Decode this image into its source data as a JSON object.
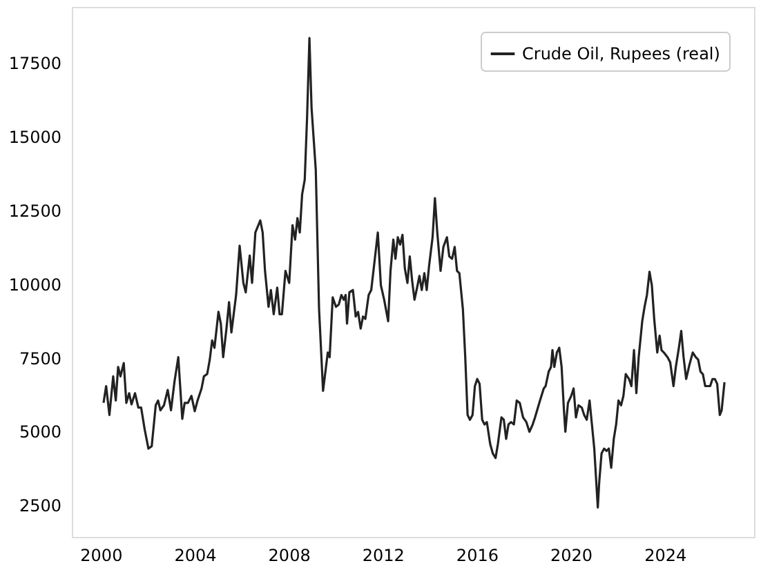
{
  "chart_data": {
    "type": "line",
    "x": [
      2000.12,
      2000.23,
      2000.37,
      2000.53,
      2000.64,
      2000.74,
      2000.84,
      2000.98,
      2001.09,
      2001.21,
      2001.31,
      2001.46,
      2001.6,
      2001.72,
      2001.87,
      2002.03,
      2002.17,
      2002.34,
      2002.44,
      2002.54,
      2002.69,
      2002.85,
      2002.99,
      2003.14,
      2003.3,
      2003.47,
      2003.57,
      2003.71,
      2003.86,
      2004.0,
      2004.12,
      2004.29,
      2004.39,
      2004.53,
      2004.64,
      2004.74,
      2004.84,
      2005.01,
      2005.11,
      2005.21,
      2005.35,
      2005.46,
      2005.56,
      2005.76,
      2005.91,
      2006.07,
      2006.17,
      2006.34,
      2006.44,
      2006.58,
      2006.79,
      2006.89,
      2006.99,
      2007.14,
      2007.24,
      2007.36,
      2007.51,
      2007.61,
      2007.71,
      2007.86,
      2008.02,
      2008.16,
      2008.27,
      2008.37,
      2008.47,
      2008.57,
      2008.68,
      2008.78,
      2008.88,
      2008.97,
      2009.15,
      2009.29,
      2009.46,
      2009.56,
      2009.66,
      2009.74,
      2009.87,
      2010.01,
      2010.13,
      2010.24,
      2010.34,
      2010.42,
      2010.48,
      2010.58,
      2010.73,
      2010.85,
      2010.95,
      2011.06,
      2011.16,
      2011.26,
      2011.4,
      2011.51,
      2011.65,
      2011.79,
      2011.92,
      2012.06,
      2012.23,
      2012.33,
      2012.45,
      2012.54,
      2012.64,
      2012.74,
      2012.84,
      2012.94,
      2013.05,
      2013.15,
      2013.25,
      2013.35,
      2013.46,
      2013.56,
      2013.66,
      2013.77,
      2013.87,
      2013.97,
      2014.12,
      2014.22,
      2014.32,
      2014.46,
      2014.58,
      2014.73,
      2014.83,
      2014.95,
      2015.06,
      2015.16,
      2015.26,
      2015.41,
      2015.51,
      2015.61,
      2015.71,
      2015.82,
      2015.92,
      2016.02,
      2016.12,
      2016.23,
      2016.33,
      2016.43,
      2016.57,
      2016.68,
      2016.8,
      2016.9,
      2017.05,
      2017.15,
      2017.25,
      2017.35,
      2017.46,
      2017.58,
      2017.7,
      2017.83,
      2017.97,
      2018.11,
      2018.24,
      2018.38,
      2018.48,
      2018.69,
      2018.85,
      2018.93,
      2019.06,
      2019.16,
      2019.22,
      2019.3,
      2019.41,
      2019.51,
      2019.61,
      2019.71,
      2019.77,
      2019.88,
      2020.02,
      2020.12,
      2020.22,
      2020.33,
      2020.47,
      2020.57,
      2020.68,
      2020.8,
      2020.9,
      2021.0,
      2021.15,
      2021.21,
      2021.31,
      2021.42,
      2021.52,
      2021.62,
      2021.72,
      2021.83,
      2021.93,
      2022.03,
      2022.14,
      2022.24,
      2022.34,
      2022.48,
      2022.58,
      2022.69,
      2022.79,
      2022.89,
      2023.04,
      2023.14,
      2023.24,
      2023.35,
      2023.45,
      2023.55,
      2023.68,
      2023.78,
      2023.86,
      2023.96,
      2024.12,
      2024.23,
      2024.37,
      2024.47,
      2024.6,
      2024.7,
      2024.8,
      2024.91,
      2025.05,
      2025.19,
      2025.32,
      2025.42,
      2025.52,
      2025.62,
      2025.72,
      2025.83,
      2025.93,
      2026.03,
      2026.13,
      2026.23,
      2026.34,
      2026.42,
      2026.54
    ],
    "series": [
      {
        "name": "Crude Oil, Rupees (real)",
        "color": "#222222",
        "values": [
          5970,
          6540,
          5560,
          6870,
          6050,
          7190,
          6870,
          7320,
          5970,
          6300,
          5920,
          6300,
          5810,
          5810,
          5070,
          4420,
          4500,
          5890,
          6050,
          5720,
          5890,
          6410,
          5720,
          6700,
          7520,
          5430,
          5970,
          5970,
          6210,
          5690,
          6050,
          6460,
          6870,
          6950,
          7440,
          8090,
          7840,
          9060,
          8660,
          7520,
          8490,
          9390,
          8360,
          9630,
          11300,
          10040,
          9720,
          10970,
          10040,
          11750,
          12160,
          11750,
          10450,
          9230,
          9800,
          8980,
          9880,
          8980,
          8980,
          10450,
          10040,
          12000,
          11510,
          12240,
          11750,
          13050,
          13540,
          15660,
          18350,
          15990,
          13870,
          9150,
          6380,
          7030,
          7680,
          7520,
          9550,
          9230,
          9310,
          9630,
          9470,
          9630,
          8660,
          9720,
          9800,
          8900,
          9060,
          8490,
          8900,
          8820,
          9630,
          9800,
          10770,
          11750,
          9960,
          9470,
          8740,
          10450,
          11510,
          10860,
          11590,
          11340,
          11670,
          10530,
          10040,
          10940,
          10120,
          9470,
          9880,
          10280,
          9800,
          10370,
          9800,
          10610,
          11590,
          12920,
          11750,
          10450,
          11260,
          11590,
          10940,
          10860,
          11260,
          10450,
          10370,
          9150,
          7520,
          5560,
          5400,
          5560,
          6540,
          6780,
          6620,
          5400,
          5240,
          5320,
          4580,
          4260,
          4100,
          4580,
          5480,
          5400,
          4750,
          5240,
          5320,
          5240,
          6050,
          5970,
          5480,
          5320,
          4990,
          5240,
          5480,
          6050,
          6460,
          6540,
          7030,
          7190,
          7760,
          7190,
          7680,
          7840,
          7190,
          5720,
          4990,
          5970,
          6210,
          6460,
          5480,
          5890,
          5810,
          5560,
          5400,
          6050,
          5240,
          4420,
          2420,
          3280,
          4260,
          4420,
          4340,
          4420,
          3770,
          4750,
          5240,
          6050,
          5890,
          6210,
          6950,
          6780,
          6540,
          7760,
          6300,
          7520,
          8740,
          9230,
          9630,
          10420,
          9960,
          8820,
          7680,
          8250,
          7760,
          7680,
          7520,
          7350,
          6540,
          7190,
          7840,
          8410,
          7520,
          6780,
          7270,
          7680,
          7520,
          7440,
          7030,
          6950,
          6540,
          6540,
          6540,
          6780,
          6780,
          6620,
          5560,
          5720,
          6670
        ]
      }
    ],
    "xlim": [
      1998.77,
      2027.8
    ],
    "xticks": [
      2000,
      2004,
      2008,
      2012,
      2016,
      2020,
      2024
    ],
    "ylim": [
      1425,
      19405
    ],
    "yticks": [
      2500,
      5000,
      7500,
      10000,
      12500,
      15000,
      17500
    ],
    "legend": "top right",
    "grid": false
  }
}
